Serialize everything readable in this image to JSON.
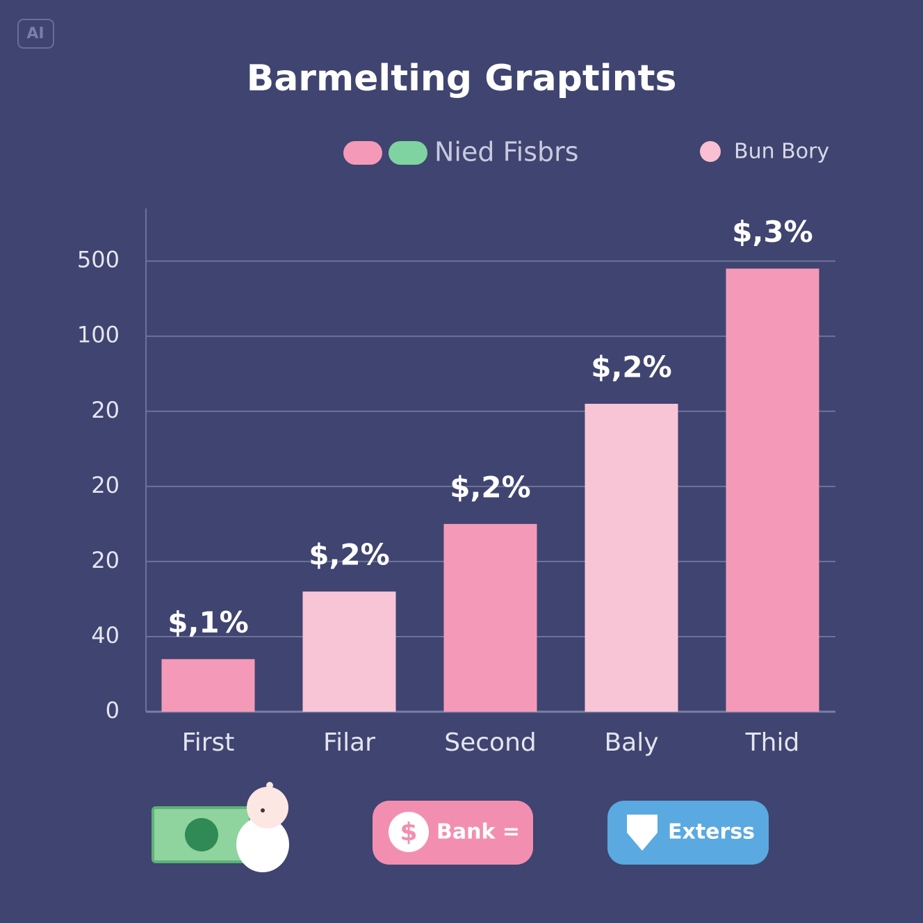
{
  "badge": "AI",
  "chart_data": {
    "type": "bar",
    "title": "Barmelting Graptints",
    "legend": [
      {
        "label": "Nied Fisbrs",
        "colors": [
          "#f49ab8",
          "#7fd3a0"
        ]
      },
      {
        "label": "Bun Bory",
        "colors": [
          "#f8c0d2"
        ]
      }
    ],
    "categories": [
      "First",
      "Filar",
      "Second",
      "Baly",
      "Thid"
    ],
    "values": [
      0.7,
      1.6,
      2.5,
      4.1,
      5.9
    ],
    "value_labels": [
      "$,1%",
      "$,2%",
      "$,2%",
      "$,2%",
      "$,3%"
    ],
    "colors": [
      "#f49ab8",
      "#f8c5d6",
      "#f49ab8",
      "#f8c5d6",
      "#f49ab8"
    ],
    "ylim": [
      0,
      6.7
    ],
    "yticks": [
      {
        "value": 0,
        "label": "0"
      },
      {
        "value": 1,
        "label": "40"
      },
      {
        "value": 2,
        "label": "20"
      },
      {
        "value": 3,
        "label": "20"
      },
      {
        "value": 4,
        "label": "20"
      },
      {
        "value": 5,
        "label": "100"
      },
      {
        "value": 6,
        "label": "500"
      }
    ],
    "grid": true
  },
  "buttons": [
    "Bank =",
    "Exterss"
  ]
}
